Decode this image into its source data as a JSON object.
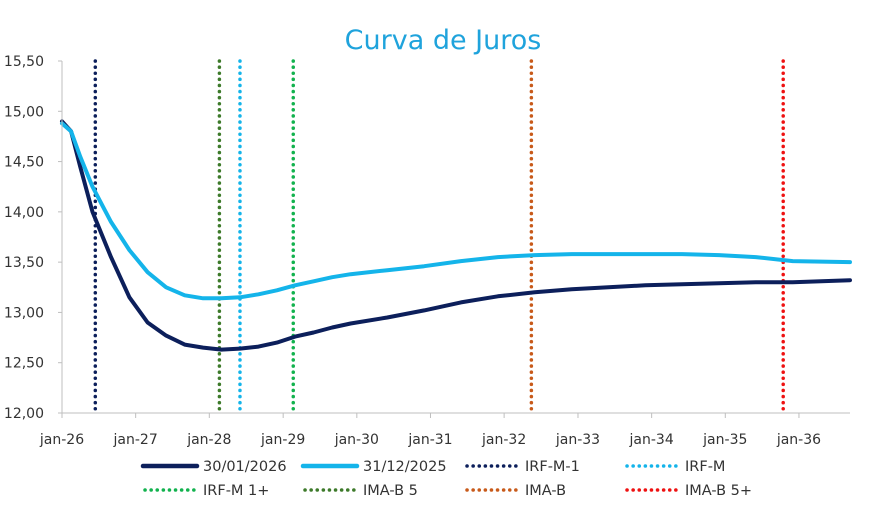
{
  "chart_data": {
    "type": "line",
    "title": "Curva de Juros",
    "xlabel": "",
    "ylabel": "",
    "x_axis": {
      "min": "2026-01-01",
      "max": "2036-09-10",
      "ticks": [
        "2026-01-01",
        "2027-01-01",
        "2028-01-01",
        "2029-01-01",
        "2030-01-01",
        "2031-01-01",
        "2032-01-01",
        "2033-01-01",
        "2034-01-01",
        "2035-01-01",
        "2036-01-01"
      ],
      "tick_labels": [
        "jan-26",
        "jan-27",
        "jan-28",
        "jan-29",
        "jan-30",
        "jan-31",
        "jan-32",
        "jan-33",
        "jan-34",
        "jan-35",
        "jan-36"
      ]
    },
    "y_axis": {
      "min": 12.0,
      "max": 15.5,
      "ticks": [
        12.0,
        12.5,
        13.0,
        13.5,
        14.0,
        14.5,
        15.0,
        15.5
      ],
      "tick_labels": [
        "12,00",
        "12,50",
        "13,00",
        "13,50",
        "14,00",
        "14,50",
        "15,00",
        "15,50"
      ]
    },
    "grid": false,
    "legend_position": "bottom",
    "series": [
      {
        "name": "30/01/2026",
        "color": "#0c1f5b",
        "style": "solid",
        "points": [
          [
            "2026-01-01",
            14.9
          ],
          [
            "2026-02-15",
            14.8
          ],
          [
            "2026-04-01",
            14.45
          ],
          [
            "2026-06-01",
            14.0
          ],
          [
            "2026-09-01",
            13.55
          ],
          [
            "2026-12-01",
            13.15
          ],
          [
            "2027-03-01",
            12.9
          ],
          [
            "2027-06-01",
            12.77
          ],
          [
            "2027-09-01",
            12.68
          ],
          [
            "2027-12-01",
            12.65
          ],
          [
            "2028-03-01",
            12.63
          ],
          [
            "2028-06-01",
            12.64
          ],
          [
            "2028-09-01",
            12.66
          ],
          [
            "2028-12-01",
            12.7
          ],
          [
            "2029-03-01",
            12.76
          ],
          [
            "2029-06-01",
            12.8
          ],
          [
            "2029-09-01",
            12.85
          ],
          [
            "2029-12-01",
            12.89
          ],
          [
            "2030-06-01",
            12.95
          ],
          [
            "2030-12-01",
            13.02
          ],
          [
            "2031-06-01",
            13.1
          ],
          [
            "2031-12-01",
            13.16
          ],
          [
            "2032-06-01",
            13.2
          ],
          [
            "2032-12-01",
            13.23
          ],
          [
            "2033-06-01",
            13.25
          ],
          [
            "2033-12-01",
            13.27
          ],
          [
            "2034-06-01",
            13.28
          ],
          [
            "2034-12-01",
            13.29
          ],
          [
            "2035-06-01",
            13.3
          ],
          [
            "2035-12-01",
            13.3
          ],
          [
            "2036-09-10",
            13.32
          ]
        ]
      },
      {
        "name": "31/12/2025",
        "color": "#14b4ea",
        "style": "solid",
        "points": [
          [
            "2026-01-01",
            14.88
          ],
          [
            "2026-02-15",
            14.8
          ],
          [
            "2026-04-01",
            14.55
          ],
          [
            "2026-06-01",
            14.25
          ],
          [
            "2026-09-01",
            13.9
          ],
          [
            "2026-12-01",
            13.62
          ],
          [
            "2027-03-01",
            13.4
          ],
          [
            "2027-06-01",
            13.25
          ],
          [
            "2027-09-01",
            13.17
          ],
          [
            "2027-12-01",
            13.14
          ],
          [
            "2028-03-01",
            13.14
          ],
          [
            "2028-06-01",
            13.15
          ],
          [
            "2028-09-01",
            13.18
          ],
          [
            "2028-12-01",
            13.22
          ],
          [
            "2029-03-01",
            13.27
          ],
          [
            "2029-06-01",
            13.31
          ],
          [
            "2029-09-01",
            13.35
          ],
          [
            "2029-12-01",
            13.38
          ],
          [
            "2030-06-01",
            13.42
          ],
          [
            "2030-12-01",
            13.46
          ],
          [
            "2031-06-01",
            13.51
          ],
          [
            "2031-12-01",
            13.55
          ],
          [
            "2032-06-01",
            13.57
          ],
          [
            "2032-12-01",
            13.58
          ],
          [
            "2033-06-01",
            13.58
          ],
          [
            "2033-12-01",
            13.58
          ],
          [
            "2034-06-01",
            13.58
          ],
          [
            "2034-12-01",
            13.57
          ],
          [
            "2035-06-01",
            13.55
          ],
          [
            "2035-12-01",
            13.51
          ],
          [
            "2036-09-10",
            13.5
          ]
        ]
      }
    ],
    "reference_lines": [
      {
        "name": "IRF-M-1",
        "date": "2026-06-15",
        "color": "#0c1f5b"
      },
      {
        "name": "IRF-M",
        "date": "2028-06-01",
        "color": "#14b4ea"
      },
      {
        "name": "IRF-M 1+",
        "date": "2029-02-20",
        "color": "#12b24e"
      },
      {
        "name": "IMA-B 5",
        "date": "2028-02-20",
        "color": "#3d7a2a"
      },
      {
        "name": "IMA-B",
        "date": "2032-05-15",
        "color": "#c85a1a"
      },
      {
        "name": "IMA-B 5+",
        "date": "2035-10-15",
        "color": "#ee1111"
      }
    ],
    "legend": [
      {
        "name": "30/01/2026",
        "color": "#0c1f5b",
        "style": "solid"
      },
      {
        "name": "31/12/2025",
        "color": "#14b4ea",
        "style": "solid"
      },
      {
        "name": "IRF-M-1",
        "color": "#0c1f5b",
        "style": "dotted"
      },
      {
        "name": "IRF-M",
        "color": "#14b4ea",
        "style": "dotted"
      },
      {
        "name": "IRF-M 1+",
        "color": "#12b24e",
        "style": "dotted"
      },
      {
        "name": "IMA-B 5",
        "color": "#3d7a2a",
        "style": "dotted"
      },
      {
        "name": "IMA-B",
        "color": "#c85a1a",
        "style": "dotted"
      },
      {
        "name": "IMA-B 5+",
        "color": "#ee1111",
        "style": "dotted"
      }
    ]
  }
}
